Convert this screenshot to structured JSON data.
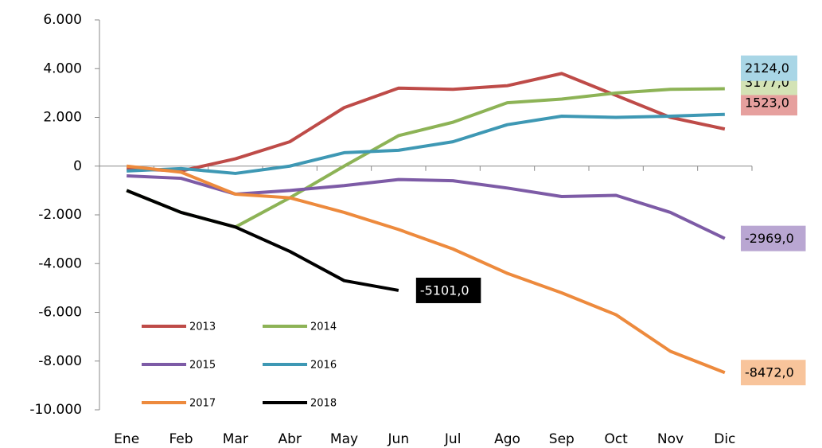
{
  "chart_data": {
    "type": "line",
    "categories": [
      "Ene",
      "Feb",
      "Mar",
      "Abr",
      "May",
      "Jun",
      "Jul",
      "Ago",
      "Sep",
      "Oct",
      "Nov",
      "Dic"
    ],
    "ylim": [
      -10000,
      6000
    ],
    "yticks": [
      {
        "value": 6000,
        "label": "6.000"
      },
      {
        "value": 4000,
        "label": "4.000"
      },
      {
        "value": 2000,
        "label": "2.000"
      },
      0,
      {
        "value": -2000,
        "label": "-2.000"
      },
      {
        "value": -4000,
        "label": "-4.000"
      },
      {
        "value": -6000,
        "label": "-6.000"
      },
      {
        "value": -8000,
        "label": "-8.000"
      },
      {
        "value": -10000,
        "label": "-10.000"
      }
    ],
    "grid": false,
    "series": [
      {
        "name": "2013",
        "color": "#be4b48",
        "label_color": "#e6a09e",
        "values": [
          -100,
          -200,
          300,
          1000,
          2400,
          3200,
          3150,
          3300,
          3800,
          2900,
          2000,
          1523
        ],
        "value_labels": [
          null,
          null,
          null,
          null,
          null,
          null,
          null,
          null,
          null,
          null,
          null,
          "1523,0"
        ]
      },
      {
        "name": "2014",
        "color": "#8db356",
        "label_color": "#d3e3b5",
        "values": [
          -1000,
          -1900,
          -2500,
          -1300,
          0,
          1250,
          1800,
          2600,
          2750,
          3000,
          3150,
          3177
        ],
        "value_labels": [
          null,
          null,
          null,
          null,
          null,
          null,
          null,
          null,
          null,
          null,
          null,
          "3177,0"
        ]
      },
      {
        "name": "2015",
        "color": "#7d5ba6",
        "label_color": "#b9a6d2",
        "values": [
          -400,
          -500,
          -1150,
          -1000,
          -800,
          -550,
          -600,
          -900,
          -1250,
          -1200,
          -1900,
          -2969
        ],
        "value_labels": [
          null,
          null,
          null,
          null,
          null,
          null,
          null,
          null,
          null,
          null,
          null,
          "-2969,0"
        ]
      },
      {
        "name": "2016",
        "color": "#3e98b4",
        "label_color": "#a9d6e6",
        "values": [
          -200,
          -100,
          -300,
          0,
          550,
          650,
          1000,
          1700,
          2050,
          2000,
          2050,
          2124
        ],
        "value_labels": [
          null,
          null,
          null,
          null,
          null,
          null,
          null,
          null,
          null,
          null,
          null,
          "2124,0"
        ]
      },
      {
        "name": "2017",
        "color": "#ed8a3d",
        "label_color": "#f8c49b",
        "values": [
          0,
          -250,
          -1150,
          -1300,
          -1900,
          -2600,
          -3400,
          -4400,
          -5200,
          -6100,
          -7600,
          -8472
        ],
        "value_labels": [
          null,
          null,
          null,
          null,
          null,
          null,
          null,
          null,
          null,
          null,
          null,
          "-8472,0"
        ]
      },
      {
        "name": "2018",
        "color": "#000000",
        "label_color": "#000000",
        "values": [
          -1000,
          -1900,
          -2500,
          -3500,
          -4700,
          -5101,
          null,
          null,
          null,
          null,
          null,
          null
        ],
        "value_labels": [
          null,
          null,
          null,
          null,
          null,
          "-5101,0",
          null,
          null,
          null,
          null,
          null,
          null
        ]
      }
    ]
  }
}
